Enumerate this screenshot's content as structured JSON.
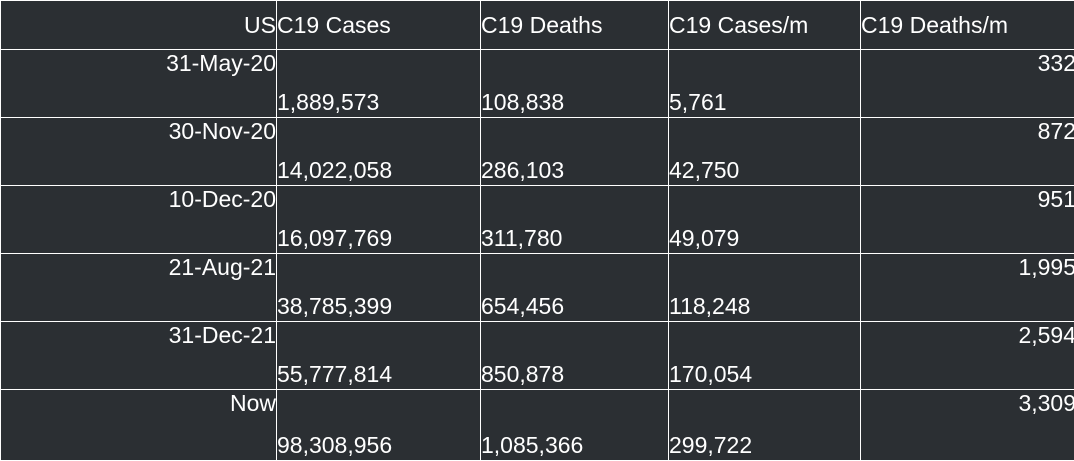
{
  "table": {
    "headers": {
      "us": "US",
      "cases": "C19 Cases",
      "deaths": "C19 Deaths",
      "cases_per_m": "C19 Cases/m",
      "deaths_per_m": "C19 Deaths/m"
    },
    "rows": [
      {
        "date": "31-May-20",
        "cases": "1,889,573",
        "deaths": "108,838",
        "cases_per_m": "5,761",
        "deaths_per_m": "332"
      },
      {
        "date": "30-Nov-20",
        "cases": "14,022,058",
        "deaths": "286,103",
        "cases_per_m": "42,750",
        "deaths_per_m": "872"
      },
      {
        "date": "10-Dec-20",
        "cases": "16,097,769",
        "deaths": "311,780",
        "cases_per_m": "49,079",
        "deaths_per_m": "951"
      },
      {
        "date": "21-Aug-21",
        "cases": "38,785,399",
        "deaths": "654,456",
        "cases_per_m": "118,248",
        "deaths_per_m": "1,995"
      },
      {
        "date": "31-Dec-21",
        "cases": "55,777,814",
        "deaths": "850,878",
        "cases_per_m": "170,054",
        "deaths_per_m": "2,594"
      },
      {
        "date": "Now",
        "cases": "98,308,956",
        "deaths": "1,085,366",
        "cases_per_m": "299,722",
        "deaths_per_m": "3,309"
      }
    ]
  },
  "colors": {
    "background": "#2b2f33",
    "text": "#ffffff",
    "grid": "#ffffff"
  }
}
